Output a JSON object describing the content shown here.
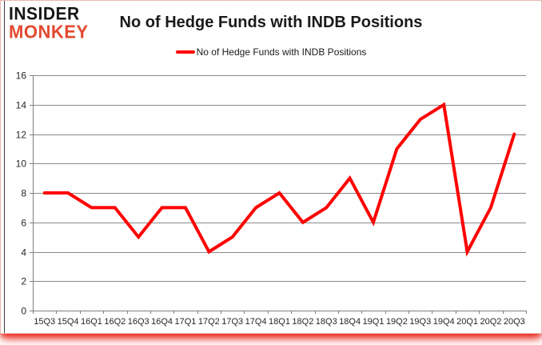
{
  "logo": {
    "line1": "INSIDER",
    "line2": "MONKEY",
    "accent_color": "#e2492f"
  },
  "header": {
    "title": "No of Hedge Funds with INDB Positions"
  },
  "legend": {
    "label": "No of Hedge Funds with INDB Positions",
    "line_color": "#ff0000"
  },
  "chart_data": {
    "type": "line",
    "title": "No of Hedge Funds with INDB Positions",
    "categories": [
      "15Q3",
      "15Q4",
      "16Q1",
      "16Q2",
      "16Q3",
      "16Q4",
      "17Q1",
      "17Q2",
      "17Q3",
      "17Q4",
      "18Q1",
      "18Q2",
      "18Q3",
      "18Q4",
      "19Q1",
      "19Q2",
      "19Q3",
      "19Q4",
      "20Q1",
      "20Q2",
      "20Q3"
    ],
    "values": [
      8,
      8,
      7,
      7,
      5,
      7,
      7,
      4,
      5,
      7,
      8,
      6,
      7,
      9,
      6,
      11,
      13,
      14,
      4,
      7,
      12
    ],
    "xlabel": "",
    "ylabel": "",
    "ylim": [
      0,
      16
    ],
    "ytick_step": 2,
    "yticks": [
      0,
      2,
      4,
      6,
      8,
      10,
      12,
      14,
      16
    ],
    "grid": true,
    "legend_position": "top-center",
    "series_color": "#ff0000",
    "gridline_color": "#898989",
    "axis_color": "#7f7f7f",
    "tick_label_color": "#262626"
  }
}
